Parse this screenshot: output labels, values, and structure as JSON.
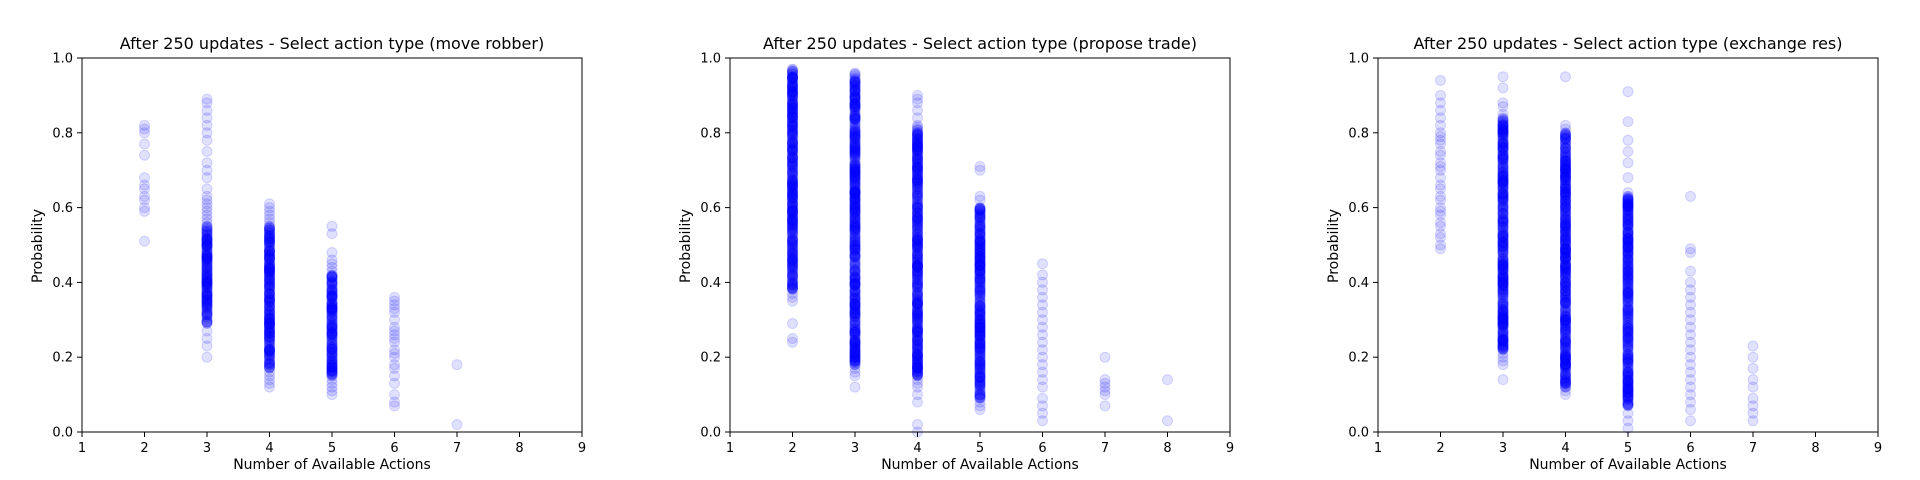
{
  "figure": {
    "background": "#ffffff"
  },
  "point_color": "#0000ff",
  "chart_data": [
    {
      "type": "scatter",
      "title": "After 250 updates - Select action type (move robber)",
      "xlabel": "Number of Available Actions",
      "ylabel": "Probability",
      "xlim": [
        1,
        9
      ],
      "ylim": [
        0,
        1
      ],
      "xticks": [
        "1",
        "2",
        "3",
        "4",
        "5",
        "6",
        "7",
        "8",
        "9"
      ],
      "yticks": [
        "0.0",
        "0.2",
        "0.4",
        "0.6",
        "0.8",
        "1.0"
      ],
      "grid": false,
      "marker_alpha": 0.12,
      "series": [
        {
          "x": 2,
          "y": [
            0.51,
            0.59,
            0.6,
            0.62,
            0.63,
            0.65,
            0.66,
            0.68,
            0.74,
            0.77,
            0.8,
            0.81,
            0.82
          ]
        },
        {
          "x": 3,
          "y": {
            "dense_min": 0.29,
            "dense_max": 0.55,
            "sparse": [
              0.2,
              0.23,
              0.25,
              0.27,
              0.56,
              0.57,
              0.58,
              0.59,
              0.6,
              0.61,
              0.62,
              0.63,
              0.65,
              0.68,
              0.7,
              0.72,
              0.75,
              0.78,
              0.8,
              0.82,
              0.84,
              0.86,
              0.88,
              0.89
            ]
          }
        },
        {
          "x": 4,
          "y": {
            "dense_min": 0.17,
            "dense_max": 0.55,
            "sparse": [
              0.12,
              0.13,
              0.14,
              0.15,
              0.16,
              0.56,
              0.57,
              0.58,
              0.59,
              0.6,
              0.61
            ]
          }
        },
        {
          "x": 5,
          "y": {
            "dense_min": 0.15,
            "dense_max": 0.42,
            "sparse": [
              0.1,
              0.11,
              0.12,
              0.13,
              0.14,
              0.43,
              0.44,
              0.45,
              0.46,
              0.48,
              0.53,
              0.55
            ]
          }
        },
        {
          "x": 6,
          "y": [
            0.07,
            0.08,
            0.1,
            0.13,
            0.15,
            0.17,
            0.18,
            0.2,
            0.21,
            0.22,
            0.24,
            0.25,
            0.26,
            0.27,
            0.28,
            0.3,
            0.32,
            0.33,
            0.34,
            0.35,
            0.36
          ]
        },
        {
          "x": 7,
          "y": [
            0.02,
            0.18
          ]
        }
      ]
    },
    {
      "type": "scatter",
      "title": "After 250 updates - Select action type (propose trade)",
      "xlabel": "Number of Available Actions",
      "ylabel": "Probability",
      "xlim": [
        1,
        9
      ],
      "ylim": [
        0,
        1
      ],
      "xticks": [
        "1",
        "2",
        "3",
        "4",
        "5",
        "6",
        "7",
        "8",
        "9"
      ],
      "yticks": [
        "0.0",
        "0.2",
        "0.4",
        "0.6",
        "0.8",
        "1.0"
      ],
      "grid": false,
      "marker_alpha": 0.12,
      "series": [
        {
          "x": 2,
          "y": {
            "dense_min": 0.38,
            "dense_max": 0.97,
            "sparse": [
              0.24,
              0.25,
              0.29,
              0.35,
              0.36,
              0.37
            ]
          }
        },
        {
          "x": 3,
          "y": {
            "dense_min": 0.18,
            "dense_max": 0.96,
            "sparse": [
              0.12,
              0.15,
              0.16,
              0.17
            ]
          }
        },
        {
          "x": 4,
          "y": {
            "dense_min": 0.15,
            "dense_max": 0.82,
            "sparse": [
              0.0,
              0.02,
              0.08,
              0.1,
              0.12,
              0.13,
              0.14,
              0.84,
              0.86,
              0.88,
              0.89,
              0.9
            ]
          }
        },
        {
          "x": 5,
          "y": {
            "dense_min": 0.09,
            "dense_max": 0.6,
            "sparse": [
              0.06,
              0.07,
              0.08,
              0.62,
              0.63,
              0.7,
              0.71
            ]
          }
        },
        {
          "x": 6,
          "y": [
            0.03,
            0.05,
            0.07,
            0.09,
            0.12,
            0.14,
            0.16,
            0.18,
            0.2,
            0.22,
            0.24,
            0.26,
            0.28,
            0.3,
            0.32,
            0.34,
            0.36,
            0.38,
            0.4,
            0.42,
            0.45
          ]
        },
        {
          "x": 7,
          "y": [
            0.07,
            0.1,
            0.11,
            0.12,
            0.13,
            0.14,
            0.2
          ]
        },
        {
          "x": 8,
          "y": [
            0.03,
            0.14
          ]
        }
      ]
    },
    {
      "type": "scatter",
      "title": "After 250 updates - Select action type (exchange res)",
      "xlabel": "Number of Available Actions",
      "ylabel": "Probability",
      "xlim": [
        1,
        9
      ],
      "ylim": [
        0,
        1
      ],
      "xticks": [
        "1",
        "2",
        "3",
        "4",
        "5",
        "6",
        "7",
        "8",
        "9"
      ],
      "yticks": [
        "0.0",
        "0.2",
        "0.4",
        "0.6",
        "0.8",
        "1.0"
      ],
      "grid": false,
      "marker_alpha": 0.12,
      "series": [
        {
          "x": 2,
          "y": [
            0.49,
            0.5,
            0.52,
            0.53,
            0.55,
            0.56,
            0.58,
            0.59,
            0.6,
            0.62,
            0.63,
            0.65,
            0.66,
            0.68,
            0.7,
            0.71,
            0.72,
            0.74,
            0.75,
            0.77,
            0.78,
            0.79,
            0.8,
            0.82,
            0.84,
            0.86,
            0.88,
            0.9,
            0.94
          ]
        },
        {
          "x": 3,
          "y": {
            "dense_min": 0.22,
            "dense_max": 0.84,
            "sparse": [
              0.14,
              0.18,
              0.19,
              0.2,
              0.21,
              0.85,
              0.87,
              0.88,
              0.92,
              0.95
            ]
          }
        },
        {
          "x": 4,
          "y": {
            "dense_min": 0.12,
            "dense_max": 0.8,
            "sparse": [
              0.1,
              0.11,
              0.81,
              0.82,
              0.95
            ]
          }
        },
        {
          "x": 5,
          "y": {
            "dense_min": 0.07,
            "dense_max": 0.63,
            "sparse": [
              0.01,
              0.03,
              0.05,
              0.64,
              0.68,
              0.72,
              0.75,
              0.78,
              0.83,
              0.91
            ]
          }
        },
        {
          "x": 6,
          "y": [
            0.03,
            0.06,
            0.08,
            0.1,
            0.12,
            0.14,
            0.16,
            0.18,
            0.2,
            0.22,
            0.24,
            0.26,
            0.28,
            0.3,
            0.32,
            0.34,
            0.36,
            0.38,
            0.4,
            0.43,
            0.48,
            0.49,
            0.63
          ]
        },
        {
          "x": 7,
          "y": [
            0.03,
            0.05,
            0.07,
            0.09,
            0.12,
            0.14,
            0.17,
            0.2,
            0.23
          ]
        }
      ]
    }
  ]
}
